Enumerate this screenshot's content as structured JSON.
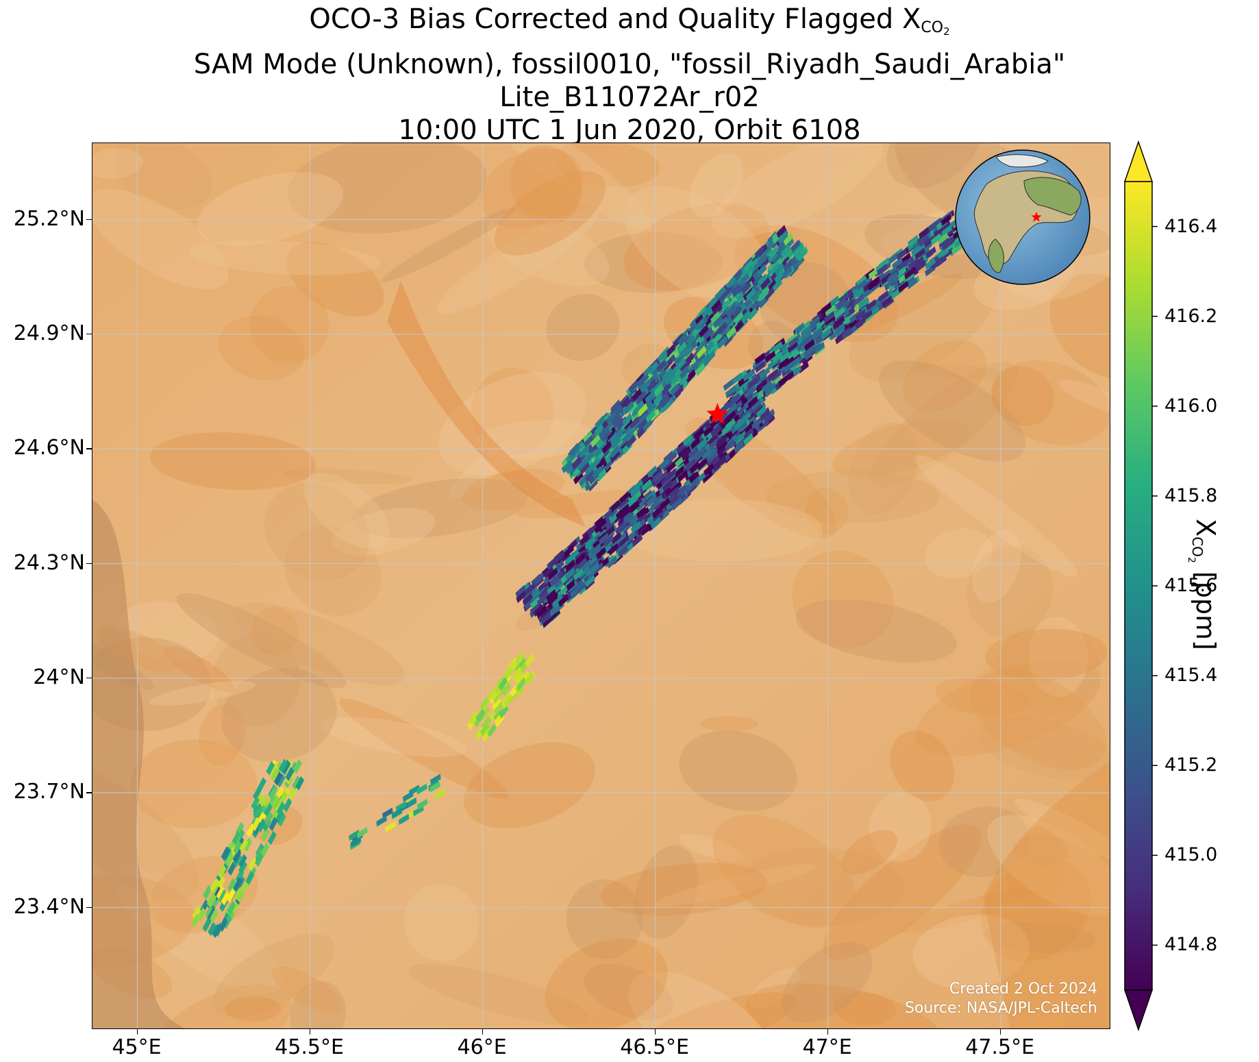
{
  "title": {
    "line1_prefix": "OCO-3 Bias Corrected and Quality Flagged X",
    "line1_sub": "CO",
    "line1_subsub": "2",
    "line2": "SAM Mode (Unknown), fossil0010, \"fossil_Riyadh_Saudi_Arabia\"",
    "line3": "Lite_B11072Ar_r02",
    "line4": "10:00 UTC 1 Jun 2020, Orbit 6108"
  },
  "map": {
    "lon_range": [
      44.87,
      47.82
    ],
    "lat_range": [
      23.08,
      25.4
    ],
    "x_ticks": [
      {
        "lon": 45.0,
        "label": "45°E"
      },
      {
        "lon": 45.5,
        "label": "45.5°E"
      },
      {
        "lon": 46.0,
        "label": "46°E"
      },
      {
        "lon": 46.5,
        "label": "46.5°E"
      },
      {
        "lon": 47.0,
        "label": "47°E"
      },
      {
        "lon": 47.5,
        "label": "47.5°E"
      }
    ],
    "y_ticks": [
      {
        "lat": 23.4,
        "label": "23.4°N"
      },
      {
        "lat": 23.7,
        "label": "23.7°N"
      },
      {
        "lat": 24.0,
        "label": "24°N"
      },
      {
        "lat": 24.3,
        "label": "24.3°N"
      },
      {
        "lat": 24.6,
        "label": "24.6°N"
      },
      {
        "lat": 24.9,
        "label": "24.9°N"
      },
      {
        "lat": 25.2,
        "label": "25.2°N"
      }
    ],
    "gridlines": true,
    "target": {
      "name": "fossil_Riyadh_Saudi_Arabia",
      "lon": 46.68,
      "lat": 24.69,
      "marker": "star",
      "color": "#ff0000"
    },
    "inset": {
      "type": "globe",
      "placement": "top-right",
      "marker": "star"
    },
    "basemap": "satellite imagery"
  },
  "credits": {
    "line1": "Created 2 Oct 2024",
    "line2": "Source: NASA/JPL-Caltech"
  },
  "colorbar": {
    "colormap": "viridis",
    "range": [
      414.7,
      416.5
    ],
    "extend": "both",
    "ticks": [
      {
        "value": 414.8,
        "label": "414.8"
      },
      {
        "value": 415.0,
        "label": "415.0"
      },
      {
        "value": 415.2,
        "label": "415.2"
      },
      {
        "value": 415.4,
        "label": "415.4"
      },
      {
        "value": 415.6,
        "label": "415.6"
      },
      {
        "value": 415.8,
        "label": "415.8"
      },
      {
        "value": 416.0,
        "label": "416.0"
      },
      {
        "value": 416.2,
        "label": "416.2"
      },
      {
        "value": 416.4,
        "label": "416.4"
      }
    ],
    "label_prefix": "X",
    "label_sub": "CO",
    "label_subsub": "2",
    "label_suffix": " [ppm]"
  },
  "swaths": [
    {
      "name": "swath-a",
      "from": [
        46.27,
        24.53
      ],
      "to": [
        46.9,
        25.14
      ],
      "halfwidth": 0.055,
      "cells": 900,
      "value_mean": 415.4,
      "value_spread": 0.9
    },
    {
      "name": "swath-b",
      "from": [
        46.73,
        24.73
      ],
      "to": [
        47.38,
        25.18
      ],
      "halfwidth": 0.05,
      "cells": 520,
      "value_mean": 415.3,
      "value_spread": 0.9
    },
    {
      "name": "swath-c",
      "from": [
        46.14,
        24.18
      ],
      "to": [
        46.8,
        24.72
      ],
      "halfwidth": 0.06,
      "cells": 800,
      "value_mean": 415.1,
      "value_spread": 0.9
    },
    {
      "name": "swath-d",
      "from": [
        45.98,
        23.86
      ],
      "to": [
        46.14,
        24.05
      ],
      "halfwidth": 0.035,
      "cells": 60,
      "value_mean": 416.3,
      "value_spread": 0.3
    },
    {
      "name": "swath-e",
      "from": [
        45.2,
        23.35
      ],
      "to": [
        45.45,
        23.78
      ],
      "halfwidth": 0.05,
      "cells": 150,
      "value_mean": 416.0,
      "value_spread": 0.8
    },
    {
      "name": "swath-f",
      "from": [
        45.62,
        23.58
      ],
      "to": [
        45.88,
        23.72
      ],
      "halfwidth": 0.03,
      "cells": 25,
      "value_mean": 415.9,
      "value_spread": 0.7
    }
  ]
}
